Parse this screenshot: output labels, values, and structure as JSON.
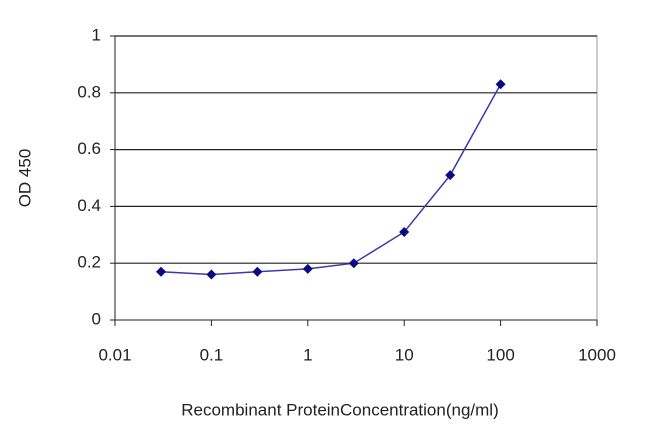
{
  "chart_data": {
    "type": "line",
    "x_label": "Recombinant ProteinConcentration(ng/ml)",
    "y_label": "OD 450",
    "x": [
      0.03,
      0.1,
      0.3,
      1,
      3,
      10,
      30,
      100
    ],
    "series": [
      {
        "color": "#3a3aa8",
        "marker_color": "#0a0a80",
        "values": [
          0.17,
          0.16,
          0.17,
          0.18,
          0.2,
          0.31,
          0.51,
          0.83
        ]
      }
    ],
    "xscale": "log",
    "xlim": [
      0.01,
      1000
    ],
    "xticks": [
      0.01,
      0.1,
      1,
      10,
      100,
      1000
    ],
    "ylim": [
      0,
      1
    ],
    "yticks": [
      0,
      0.2,
      0.4,
      0.6,
      0.8,
      1
    ],
    "grid": true
  }
}
